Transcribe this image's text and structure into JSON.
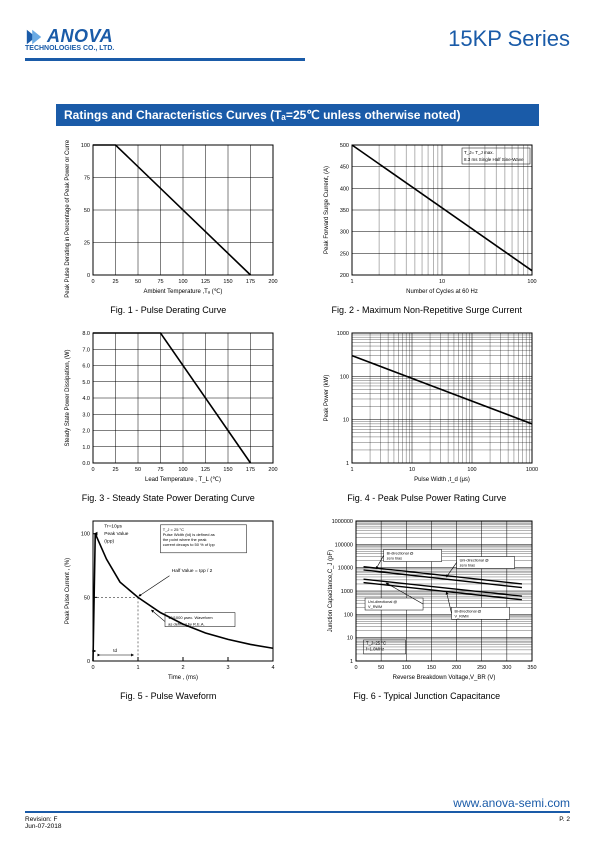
{
  "header": {
    "brand_name": "ANOVA",
    "brand_sub": "TECHNOLOGIES CO., LTD.",
    "series_title": "15KP Series",
    "brand_color": "#1a5ba8"
  },
  "section_title": "Ratings and Characteristics Curves (Tₐ=25℃ unless otherwise noted)",
  "fig1": {
    "caption": "Fig. 1 - Pulse Derating Curve",
    "xlabel": "Ambient Temperature ,Tₐ  (℃)",
    "ylabel": "Peak Pulse Derating in Percentage of Peak Power or Current, (%)",
    "xlim": [
      0,
      200
    ],
    "ylim": [
      0,
      100
    ],
    "xticks": [
      0,
      25,
      50,
      75,
      100,
      125,
      150,
      175,
      200
    ],
    "yticks": [
      0,
      25,
      50,
      75,
      100
    ],
    "line": [
      [
        0,
        100
      ],
      [
        25,
        100
      ],
      [
        175,
        0
      ]
    ],
    "line_width": 1.6,
    "grid_color": "#000"
  },
  "fig2": {
    "caption": "Fig. 2 - Maximum Non-Repetitive Surge Current",
    "xlabel": "Number of Cycles at 60 Hz",
    "ylabel": "Peak Forward Surge Current, (A)",
    "xscale": "log",
    "xlim": [
      1,
      100
    ],
    "ylim": [
      200,
      500
    ],
    "xticks": [
      1,
      10,
      100
    ],
    "yticks": [
      200,
      250,
      300,
      350,
      400,
      450,
      500
    ],
    "line": [
      [
        1,
        500
      ],
      [
        100,
        210
      ]
    ],
    "line_width": 1.6,
    "note": "T_J= T_J max.\n8.3 ms Single Half Sine-Wave"
  },
  "fig3": {
    "caption": "Fig. 3 - Steady State Power Derating Curve",
    "xlabel": "Lead Temperature , T_L  (℃)",
    "ylabel": "Steady State Power Dissipation, (W)",
    "xlim": [
      0,
      200
    ],
    "ylim": [
      0,
      8
    ],
    "xticks": [
      0,
      25,
      50,
      75,
      100,
      125,
      150,
      175,
      200
    ],
    "yticks": [
      0,
      1,
      2,
      3,
      4,
      5,
      6,
      7,
      8
    ],
    "ytick_labels": [
      "0.0",
      "1.0",
      "2.0",
      "3.0",
      "4.0",
      "5.0",
      "6.0",
      "7.0",
      "8.0"
    ],
    "line": [
      [
        0,
        8
      ],
      [
        75,
        8
      ],
      [
        175,
        0
      ]
    ],
    "line_width": 1.6
  },
  "fig4": {
    "caption": "Fig. 4 - Peak Pulse Power Rating Curve",
    "xlabel": "Pulse Width ,t_d (μs)",
    "ylabel": "Peak Power (kW)",
    "xscale": "log",
    "yscale": "log",
    "xlim": [
      1,
      1000
    ],
    "ylim": [
      1,
      1000
    ],
    "xticks": [
      1,
      10,
      100,
      1000
    ],
    "yticks": [
      1,
      10,
      100,
      1000
    ],
    "line": [
      [
        1,
        300
      ],
      [
        1000,
        8
      ]
    ],
    "line_width": 1.6
  },
  "fig5": {
    "caption": "Fig. 5 - Pulse Waveform",
    "xlabel": "Time , (ms)",
    "ylabel": "Peak Pulse Current , (%)",
    "xlim": [
      0,
      4
    ],
    "ylim": [
      0,
      110
    ],
    "xticks": [
      0,
      1,
      2,
      3,
      4
    ],
    "yticks": [
      0,
      50,
      100
    ],
    "notes": {
      "rise": "Tr=10μs",
      "peak": "Peak Value (Ipp)",
      "half": "Half Value = Ipp / 2",
      "cond": "T_J = 25 °C\nPulse Width (td) is defined as the point where the peak current decays to 50 % of Ipp",
      "wave": "10/1000 μsec. Waveform as defined by R.E.A.",
      "td": "td"
    },
    "curve": [
      [
        0,
        0
      ],
      [
        0.05,
        100
      ],
      [
        0.3,
        80
      ],
      [
        0.6,
        62
      ],
      [
        1.0,
        50
      ],
      [
        1.5,
        38
      ],
      [
        2.0,
        29
      ],
      [
        2.5,
        22
      ],
      [
        3.0,
        17
      ],
      [
        3.5,
        13
      ],
      [
        4.0,
        10
      ]
    ]
  },
  "fig6": {
    "caption": "Fig. 6 - Typical Junction Capacitance",
    "xlabel": "Reverse  Breakdown Voltage,V_BR (V)",
    "ylabel": "Junction Capacitance,C_J (pF)",
    "yscale": "log",
    "xlim": [
      0,
      350
    ],
    "ylim": [
      1,
      1000000
    ],
    "xticks": [
      0,
      50,
      100,
      150,
      200,
      250,
      300,
      350
    ],
    "yticks": [
      1,
      10,
      100,
      1000,
      10000,
      100000,
      1000000
    ],
    "series": [
      {
        "label": "Bi-directional @zero bias",
        "data": [
          [
            15,
            11000
          ],
          [
            330,
            2000
          ]
        ]
      },
      {
        "label": "Uni-directional @zero bias",
        "data": [
          [
            15,
            8000
          ],
          [
            330,
            1400
          ]
        ]
      },
      {
        "label": "Uni-directional @V_RWM",
        "data": [
          [
            15,
            3200
          ],
          [
            330,
            600
          ]
        ]
      },
      {
        "label": "Bi-directional @V_RWM",
        "data": [
          [
            15,
            2300
          ],
          [
            330,
            420
          ]
        ]
      }
    ],
    "note": "T_J=25 °C\nf=1.0MHz"
  },
  "footer": {
    "url": "www.anova-semi.com",
    "revision": "Revision: F",
    "date": "Jun-07-2018",
    "page": "P. 2"
  }
}
